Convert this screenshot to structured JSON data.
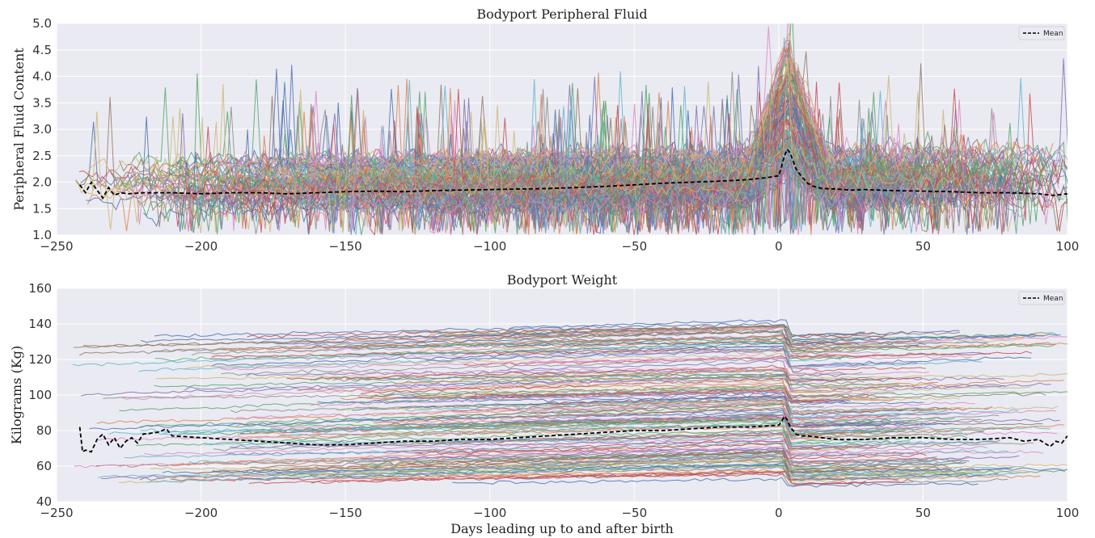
{
  "chart_data": [
    {
      "type": "line",
      "title": "Bodyport Peripheral Fluid",
      "xlabel": "",
      "ylabel": "Peripheral Fluid Content",
      "xlim": [
        -250,
        100
      ],
      "ylim": [
        1.0,
        5.0
      ],
      "xticks": [
        -250,
        -200,
        -150,
        -100,
        -50,
        0,
        50,
        100
      ],
      "xtick_labels": [
        "−250",
        "−200",
        "−150",
        "−100",
        "−50",
        "0",
        "50",
        "100"
      ],
      "yticks": [
        1.0,
        1.5,
        2.0,
        2.5,
        3.0,
        3.5,
        4.0,
        4.5,
        5.0
      ],
      "ytick_labels": [
        "1.0",
        "1.5",
        "2.0",
        "2.5",
        "3.0",
        "3.5",
        "4.0",
        "4.5",
        "5.0"
      ],
      "grid": true,
      "background": "#EAEAF2",
      "legend_position": "top-right",
      "legend": [
        "Mean"
      ],
      "series": [
        {
          "name": "Mean",
          "style": "dashed",
          "color": "#000000",
          "x": [
            -242,
            -240,
            -238,
            -236,
            -234,
            -232,
            -230,
            -228,
            -225,
            -220,
            -210,
            -200,
            -190,
            -180,
            -170,
            -160,
            -150,
            -140,
            -130,
            -120,
            -110,
            -100,
            -90,
            -80,
            -70,
            -60,
            -50,
            -40,
            -30,
            -20,
            -10,
            -5,
            0,
            1,
            2,
            3,
            4,
            5,
            6,
            8,
            10,
            12,
            15,
            20,
            25,
            30,
            40,
            50,
            60,
            70,
            80,
            90,
            95,
            100
          ],
          "y": [
            1.95,
            1.8,
            2.0,
            1.85,
            1.7,
            1.9,
            1.75,
            1.8,
            1.78,
            1.8,
            1.8,
            1.78,
            1.8,
            1.8,
            1.78,
            1.8,
            1.82,
            1.83,
            1.82,
            1.84,
            1.85,
            1.86,
            1.87,
            1.88,
            1.9,
            1.92,
            1.95,
            1.98,
            2.0,
            2.02,
            2.05,
            2.08,
            2.12,
            2.3,
            2.5,
            2.62,
            2.55,
            2.4,
            2.25,
            2.1,
            1.98,
            1.92,
            1.88,
            1.87,
            1.85,
            1.86,
            1.84,
            1.83,
            1.82,
            1.8,
            1.8,
            1.78,
            1.75,
            1.78
          ]
        }
      ],
      "individual_series": {
        "description_count": 300,
        "color_cycle": [
          "#4C72B0",
          "#DD8452",
          "#55A868",
          "#C44E52",
          "#8172B3",
          "#937860",
          "#DA8BC3",
          "#8C8C8C",
          "#CCB974",
          "#64B5CD"
        ],
        "typical_range": [
          1.3,
          2.6
        ],
        "peak_near_x": 3,
        "peak_max_y": 4.9
      }
    },
    {
      "type": "line",
      "title": "Bodyport Weight",
      "xlabel": "Days leading up to and after birth",
      "ylabel": "Kilograms (Kg)",
      "xlim": [
        -250,
        100
      ],
      "ylim": [
        40,
        160
      ],
      "xticks": [
        -250,
        -200,
        -150,
        -100,
        -50,
        0,
        50,
        100
      ],
      "xtick_labels": [
        "−250",
        "−200",
        "−150",
        "−100",
        "−50",
        "0",
        "50",
        "100"
      ],
      "yticks": [
        40,
        60,
        80,
        100,
        120,
        140,
        160
      ],
      "ytick_labels": [
        "40",
        "60",
        "80",
        "100",
        "120",
        "140",
        "160"
      ],
      "grid": true,
      "background": "#EAEAF2",
      "legend_position": "top-right",
      "legend": [
        "Mean"
      ],
      "series": [
        {
          "name": "Mean",
          "style": "dashed",
          "color": "#000000",
          "x": [
            -242,
            -241,
            -240,
            -238,
            -236,
            -234,
            -232,
            -230,
            -228,
            -226,
            -224,
            -222,
            -220,
            -215,
            -212,
            -210,
            -200,
            -190,
            -180,
            -170,
            -160,
            -150,
            -140,
            -130,
            -120,
            -110,
            -100,
            -90,
            -80,
            -70,
            -60,
            -50,
            -40,
            -30,
            -20,
            -10,
            0,
            1,
            2,
            3,
            4,
            5,
            6,
            8,
            10,
            15,
            20,
            30,
            40,
            50,
            60,
            70,
            80,
            85,
            90,
            92,
            94,
            96,
            98,
            100
          ],
          "y": [
            82,
            68,
            69,
            68,
            75,
            78,
            72,
            76,
            70,
            74,
            76,
            73,
            78,
            79,
            81,
            77,
            76,
            75,
            74,
            73,
            72,
            72,
            73,
            74,
            74,
            75,
            75,
            76,
            77,
            78,
            79,
            80,
            80,
            81,
            82,
            82,
            83,
            85,
            88,
            86,
            82,
            80,
            78,
            77,
            77,
            76,
            75,
            75,
            76,
            76,
            75,
            75,
            76,
            74,
            75,
            73,
            71,
            74,
            73,
            77
          ]
        }
      ],
      "individual_series": {
        "description_count": 300,
        "color_cycle": [
          "#4C72B0",
          "#DD8452",
          "#55A868",
          "#C44E52",
          "#8172B3",
          "#937860",
          "#DA8BC3",
          "#8C8C8C",
          "#CCB974",
          "#64B5CD"
        ],
        "typical_range": [
          45,
          150
        ],
        "step_down_near_x": 3
      }
    }
  ]
}
